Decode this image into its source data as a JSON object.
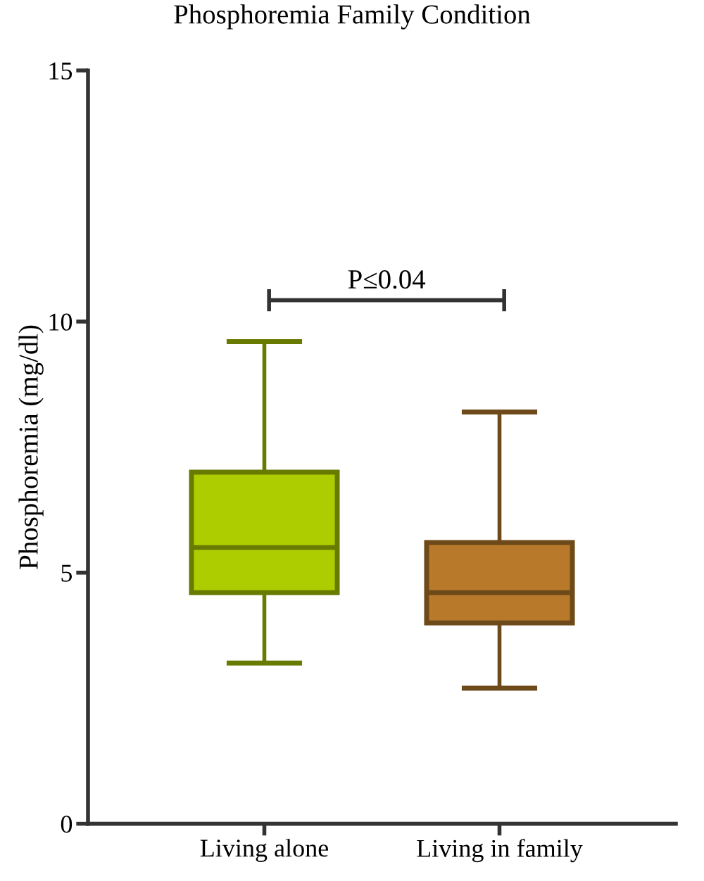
{
  "chart_data": {
    "type": "box",
    "title": "Phosphoremia Family Condition",
    "ylabel": "Phosphoremia (mg/dl)",
    "categories": [
      "Living alone",
      "Living in family"
    ],
    "boxes": [
      {
        "low": 3.2,
        "q1": 4.6,
        "median": 5.5,
        "q3": 7.0,
        "high": 9.6
      },
      {
        "low": 2.7,
        "q1": 4.0,
        "median": 4.6,
        "q3": 5.6,
        "high": 8.2
      }
    ],
    "colors": [
      "#aecd00",
      "#b87a2a"
    ],
    "ylim": [
      0,
      15
    ],
    "yticks": [
      0,
      5,
      10,
      15
    ],
    "grid": false,
    "annotations": [
      "P≤0.04"
    ]
  }
}
